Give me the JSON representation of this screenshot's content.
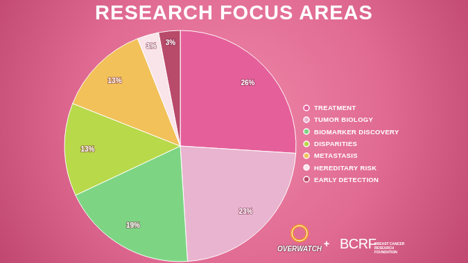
{
  "chart_data": {
    "type": "pie",
    "title": "RESEARCH FOCUS AREAS",
    "categories": [
      "TREATMENT",
      "TUMOR BIOLOGY",
      "BIOMARKER DISCOVERY",
      "DISPARITIES",
      "METASTASIS",
      "HEREDITARY RISK",
      "EARLY DETECTION"
    ],
    "values": [
      26,
      23,
      19,
      13,
      13,
      3,
      3
    ],
    "value_labels": [
      "26%",
      "23%",
      "19%",
      "13%",
      "13%",
      "3%",
      "3%"
    ],
    "colors": [
      "#e5609a",
      "#e9b4cf",
      "#7dd584",
      "#b8d94a",
      "#f2c15a",
      "#f9e4ea",
      "#b84a6a"
    ],
    "data_labels": true,
    "legend": "right",
    "annotations": [
      "OVERWATCH",
      "+",
      "BCRF",
      "BREAST CANCER RESEARCH FOUNDATION"
    ]
  }
}
